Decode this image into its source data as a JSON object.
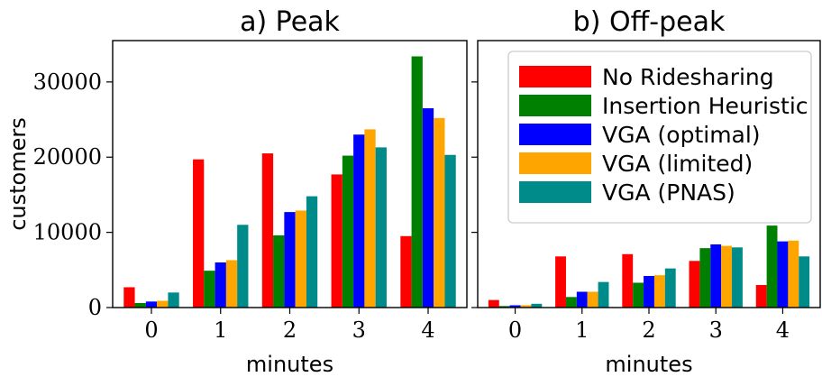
{
  "chart_data": [
    {
      "type": "bar",
      "title": "a) Peak",
      "xlabel": "minutes",
      "ylabel": "customers",
      "categories": [
        "0",
        "1",
        "2",
        "3",
        "4"
      ],
      "ylim": [
        0,
        35500
      ],
      "yticks": [
        0,
        10000,
        20000,
        30000
      ],
      "ytick_labels": [
        "0",
        "10000",
        "20000",
        "30000"
      ],
      "grid": false,
      "series": [
        {
          "name": "No Ridesharing",
          "color": "#ff0000",
          "values": [
            2700,
            19700,
            20500,
            17700,
            9500
          ]
        },
        {
          "name": "Insertion Heuristic",
          "color": "#008000",
          "values": [
            600,
            4900,
            9600,
            20200,
            33400
          ]
        },
        {
          "name": "VGA (optimal)",
          "color": "#0000ff",
          "values": [
            800,
            6000,
            12700,
            23000,
            26500
          ]
        },
        {
          "name": "VGA (limited)",
          "color": "#ffa500",
          "values": [
            900,
            6300,
            12900,
            23700,
            25200
          ]
        },
        {
          "name": "VGA (PNAS)",
          "color": "#008b8b",
          "values": [
            2000,
            11000,
            14800,
            21300,
            20300
          ]
        }
      ]
    },
    {
      "type": "bar",
      "title": "b) Off-peak",
      "xlabel": "minutes",
      "ylabel": "",
      "categories": [
        "0",
        "1",
        "2",
        "3",
        "4"
      ],
      "ylim": [
        0,
        35500
      ],
      "yticks": [
        0,
        10000,
        20000,
        30000
      ],
      "ytick_labels": [
        "",
        "",
        "",
        ""
      ],
      "grid": false,
      "legend": "upper-right",
      "series": [
        {
          "name": "No Ridesharing",
          "color": "#ff0000",
          "values": [
            1000,
            6800,
            7100,
            6200,
            3000
          ]
        },
        {
          "name": "Insertion Heuristic",
          "color": "#008000",
          "values": [
            200,
            1400,
            3300,
            7900,
            10900
          ]
        },
        {
          "name": "VGA (optimal)",
          "color": "#0000ff",
          "values": [
            300,
            2100,
            4200,
            8400,
            8800
          ]
        },
        {
          "name": "VGA (limited)",
          "color": "#ffa500",
          "values": [
            300,
            2100,
            4300,
            8200,
            8900
          ]
        },
        {
          "name": "VGA (PNAS)",
          "color": "#008b8b",
          "values": [
            500,
            3400,
            5200,
            8000,
            6800
          ]
        }
      ]
    }
  ]
}
